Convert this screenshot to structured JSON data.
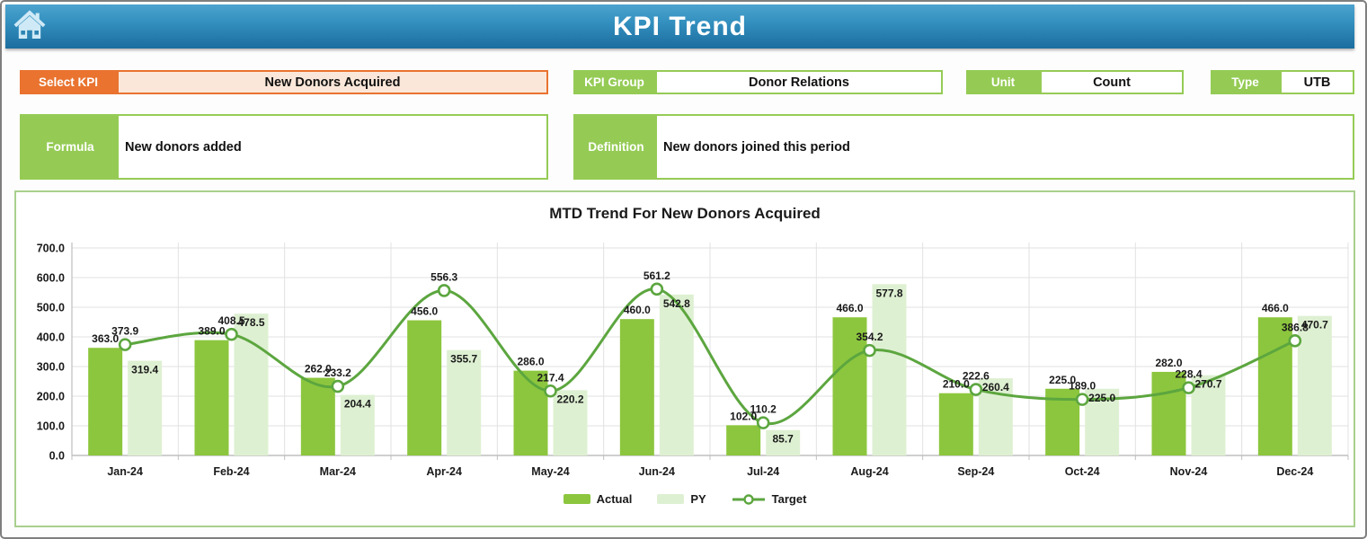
{
  "header": {
    "title": "KPI Trend",
    "home_icon": "home"
  },
  "fields": {
    "select_kpi": {
      "label": "Select KPI",
      "value": "New Donors Acquired"
    },
    "kpi_group": {
      "label": "KPI Group",
      "value": "Donor Relations"
    },
    "unit": {
      "label": "Unit",
      "value": "Count"
    },
    "type": {
      "label": "Type",
      "value": "UTB"
    },
    "formula": {
      "label": "Formula",
      "value": "New donors added"
    },
    "definition": {
      "label": "Definition",
      "value": "New donors joined this period"
    }
  },
  "chart_data": {
    "type": "bar",
    "title": "MTD Trend For New Donors Acquired",
    "categories": [
      "Jan-24",
      "Feb-24",
      "Mar-24",
      "Apr-24",
      "May-24",
      "Jun-24",
      "Jul-24",
      "Aug-24",
      "Sep-24",
      "Oct-24",
      "Nov-24",
      "Dec-24"
    ],
    "series": [
      {
        "name": "Actual",
        "type": "bar",
        "color": "#8cc63e",
        "values": [
          363.0,
          389.0,
          262.0,
          456.0,
          286.0,
          460.0,
          102.0,
          466.0,
          210.0,
          225.0,
          282.0,
          466.0
        ]
      },
      {
        "name": "PY",
        "type": "bar",
        "color": "#def0d2",
        "values": [
          319.4,
          478.5,
          204.4,
          355.7,
          220.2,
          542.8,
          85.7,
          577.8,
          260.4,
          225.0,
          270.7,
          470.7
        ]
      },
      {
        "name": "Target",
        "type": "line",
        "color": "#5ca63f",
        "marker": "circle",
        "values": [
          373.9,
          408.5,
          233.2,
          556.3,
          217.4,
          561.2,
          110.2,
          354.2,
          222.6,
          189.0,
          228.4,
          386.8
        ]
      }
    ],
    "xlabel": "",
    "ylabel": "",
    "ylim": [
      0,
      700
    ],
    "ytick_step": 100,
    "decimals": 1,
    "grid": true,
    "legend_position": "bottom"
  },
  "colors": {
    "accent_orange": "#e9732f",
    "accent_orange_fill": "#fbe7d9",
    "accent_green": "#95cb55",
    "chart_border": "#a8d08d",
    "header_blue_top": "#4da3ce",
    "header_blue_bottom": "#1b6d9f",
    "gridline": "#e2e2e2",
    "axis_line": "#bfbfbf"
  }
}
